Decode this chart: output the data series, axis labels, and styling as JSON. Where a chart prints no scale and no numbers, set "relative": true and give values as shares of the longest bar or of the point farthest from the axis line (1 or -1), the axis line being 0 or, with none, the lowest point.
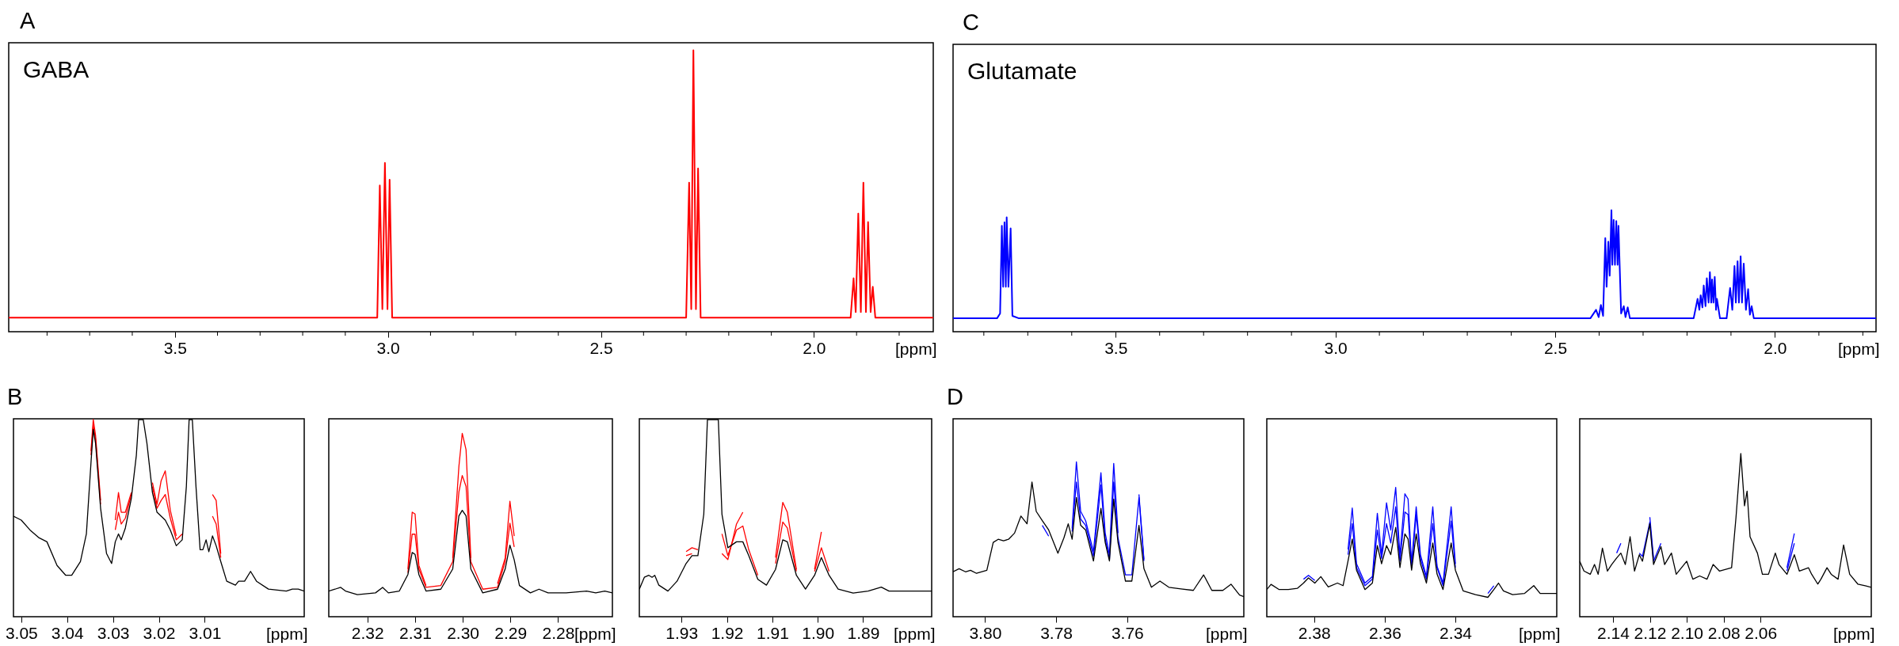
{
  "chart_data": [
    {
      "type": "line",
      "title": "A",
      "annotations": [
        "GABA"
      ],
      "xlabel": "[ppm]",
      "relative": true,
      "xlim": [
        3.89,
        1.72
      ],
      "xticks": [
        {
          "value": 3.8,
          "label": null
        },
        {
          "value": 3.7,
          "label": null
        },
        {
          "value": 3.6,
          "label": null
        },
        3.5,
        {
          "value": 3.4,
          "label": null
        },
        {
          "value": 3.3,
          "label": null
        },
        {
          "value": 3.2,
          "label": null
        },
        {
          "value": 3.1,
          "label": null
        },
        {
          "value": 3.0,
          "label": "3.0"
        },
        {
          "value": 2.9,
          "label": null
        },
        {
          "value": 2.8,
          "label": null
        },
        {
          "value": 2.7,
          "label": null
        },
        {
          "value": 2.6,
          "label": null
        },
        2.5,
        {
          "value": 2.4,
          "label": null
        },
        {
          "value": 2.3,
          "label": null
        },
        {
          "value": 2.2,
          "label": null
        },
        {
          "value": 2.1,
          "label": null
        },
        {
          "value": 2.0,
          "label": "2.0"
        },
        {
          "value": 1.9,
          "label": null
        },
        {
          "value": 1.8,
          "label": null
        }
      ],
      "x": [
        3.89,
        3.2,
        3.025,
        3.019,
        3.013,
        3.007,
        3.001,
        2.996,
        2.99,
        2.3,
        2.293,
        2.288,
        2.283,
        2.277,
        2.272,
        2.266,
        1.914,
        1.907,
        1.902,
        1.896,
        1.89,
        1.884,
        1.878,
        1.873,
        1.867,
        1.862,
        1.856,
        1.72
      ],
      "series": [
        {
          "color": "#ff0000",
          "values": [
            0.05,
            0.05,
            0.05,
            0.52,
            0.08,
            0.6,
            0.08,
            0.54,
            0.05,
            0.05,
            0.53,
            0.08,
            1.0,
            0.08,
            0.58,
            0.05,
            0.05,
            0.19,
            0.07,
            0.42,
            0.07,
            0.53,
            0.07,
            0.39,
            0.07,
            0.16,
            0.05,
            0.05
          ]
        }
      ]
    },
    {
      "type": "line",
      "title": "C",
      "annotations": [
        "Glutamate"
      ],
      "xlabel": "[ppm]",
      "relative": true,
      "xlim": [
        3.87,
        1.77
      ],
      "xticks": [
        {
          "value": 3.8,
          "label": null
        },
        {
          "value": 3.7,
          "label": null
        },
        {
          "value": 3.6,
          "label": null
        },
        3.5,
        {
          "value": 3.4,
          "label": null
        },
        {
          "value": 3.3,
          "label": null
        },
        {
          "value": 3.2,
          "label": null
        },
        {
          "value": 3.1,
          "label": null
        },
        {
          "value": 3.0,
          "label": "3.0"
        },
        {
          "value": 2.9,
          "label": null
        },
        {
          "value": 2.8,
          "label": null
        },
        {
          "value": 2.7,
          "label": null
        },
        {
          "value": 2.6,
          "label": null
        },
        2.5,
        {
          "value": 2.4,
          "label": null
        },
        {
          "value": 2.3,
          "label": null
        },
        {
          "value": 2.2,
          "label": null
        },
        {
          "value": 2.1,
          "label": null
        },
        {
          "value": 2.0,
          "label": "2.0"
        },
        {
          "value": 1.9,
          "label": null
        },
        {
          "value": 1.8,
          "label": null
        }
      ],
      "x": [
        3.87,
        3.77,
        3.763,
        3.759,
        3.756,
        3.753,
        3.75,
        3.748,
        3.744,
        3.739,
        3.735,
        3.72,
        2.42,
        2.407,
        2.401,
        2.396,
        2.391,
        2.386,
        2.383,
        2.379,
        2.376,
        2.372,
        2.37,
        2.367,
        2.364,
        2.361,
        2.358,
        2.356,
        2.35,
        2.344,
        2.34,
        2.335,
        2.33,
        2.185,
        2.176,
        2.172,
        2.169,
        2.165,
        2.162,
        2.158,
        2.155,
        2.151,
        2.148,
        2.145,
        2.143,
        2.14,
        2.137,
        2.134,
        2.132,
        2.125,
        2.11,
        2.102,
        2.097,
        2.092,
        2.089,
        2.085,
        2.082,
        2.078,
        2.075,
        2.071,
        2.066,
        2.061,
        2.057,
        2.053,
        2.048,
        1.77
      ],
      "series": [
        {
          "color": "#0000ff",
          "values": [
            0.11,
            0.11,
            0.15,
            0.87,
            0.37,
            0.9,
            0.37,
            0.94,
            0.37,
            0.85,
            0.13,
            0.11,
            0.11,
            0.18,
            0.12,
            0.22,
            0.13,
            0.77,
            0.37,
            0.74,
            0.46,
            1.0,
            0.55,
            0.92,
            0.55,
            0.91,
            0.55,
            0.87,
            0.15,
            0.21,
            0.12,
            0.2,
            0.11,
            0.11,
            0.27,
            0.18,
            0.3,
            0.2,
            0.38,
            0.21,
            0.44,
            0.24,
            0.49,
            0.24,
            0.43,
            0.24,
            0.45,
            0.18,
            0.27,
            0.11,
            0.11,
            0.36,
            0.18,
            0.54,
            0.24,
            0.58,
            0.24,
            0.62,
            0.24,
            0.56,
            0.18,
            0.35,
            0.14,
            0.21,
            0.11,
            0.11
          ]
        }
      ]
    },
    {
      "type": "line",
      "title": "B",
      "xlabel": "[ppm]",
      "relative": true,
      "xlim": [
        3.0517,
        2.9883
      ],
      "xticks": [
        3.05,
        3.04,
        3.03,
        3.02,
        3.01
      ],
      "x": [
        3.0517,
        3.05,
        3.0481,
        3.0461,
        3.0444,
        3.0422,
        3.0403,
        3.039,
        3.0371,
        3.0358,
        3.0348,
        3.0343,
        3.0338,
        3.0327,
        3.0314,
        3.0303,
        3.0295,
        3.0288,
        3.0282,
        3.0273,
        3.026,
        3.0249,
        3.0244,
        3.0234,
        3.0226,
        3.0214,
        3.0204,
        3.0195,
        3.0186,
        3.0175,
        3.0162,
        3.0149,
        3.014,
        3.0134,
        3.0127,
        3.0119,
        3.011,
        3.0104,
        3.0097,
        3.0091,
        3.0083,
        3.0075,
        3.0065,
        3.0052,
        3.0033,
        3.0026,
        3.0013,
        3.0,
        2.9987,
        2.9961,
        2.9922,
        2.9909,
        2.9896,
        2.9883
      ],
      "series": [
        {
          "color": "#ff0000",
          "values": [
            null,
            null,
            null,
            null,
            null,
            null,
            null,
            null,
            null,
            null,
            0.84,
            1.0,
            0.92,
            0.59,
            null,
            null,
            0.49,
            0.63,
            0.53,
            0.53,
            0.63,
            null,
            null,
            null,
            null,
            0.68,
            0.57,
            0.69,
            0.74,
            0.54,
            0.41,
            null,
            null,
            null,
            null,
            null,
            null,
            null,
            null,
            null,
            0.62,
            0.59,
            0.32,
            null,
            null,
            null,
            null,
            null,
            null,
            null,
            null,
            null,
            null,
            null
          ]
        },
        {
          "color": "#ff0000",
          "values": [
            null,
            null,
            null,
            null,
            null,
            null,
            null,
            null,
            null,
            null,
            0.82,
            0.97,
            0.9,
            0.57,
            null,
            null,
            0.44,
            0.53,
            0.47,
            0.5,
            0.62,
            null,
            null,
            null,
            null,
            0.66,
            0.55,
            0.59,
            0.62,
            0.5,
            0.39,
            0.42,
            null,
            null,
            null,
            null,
            null,
            null,
            null,
            null,
            0.51,
            0.47,
            0.3,
            null,
            null,
            null,
            null,
            null,
            null,
            null,
            null,
            null,
            null,
            null
          ]
        },
        {
          "color": "#000000",
          "values": [
            0.51,
            0.49,
            0.44,
            0.4,
            0.38,
            0.26,
            0.21,
            0.21,
            0.28,
            0.42,
            0.78,
            0.95,
            0.88,
            0.55,
            0.32,
            0.27,
            0.38,
            0.42,
            0.39,
            0.45,
            0.6,
            0.82,
            1.0,
            1.0,
            0.88,
            0.63,
            0.53,
            0.51,
            0.49,
            0.44,
            0.36,
            0.39,
            0.66,
            1.0,
            1.0,
            0.66,
            0.34,
            0.34,
            0.39,
            0.33,
            0.41,
            0.36,
            0.28,
            0.18,
            0.16,
            0.18,
            0.18,
            0.23,
            0.18,
            0.14,
            0.13,
            0.14,
            0.14,
            0.13
          ]
        }
      ]
    },
    {
      "type": "line",
      "xlabel": "[ppm]",
      "relative": true,
      "xlim": [
        2.3281,
        2.2686
      ],
      "xticks": [
        2.32,
        2.31,
        {
          "value": 2.3,
          "label": "2.30"
        },
        2.29,
        2.28
      ],
      "x": [
        2.3281,
        2.3268,
        2.3256,
        2.3246,
        2.3221,
        2.3183,
        2.3168,
        2.3156,
        2.3133,
        2.3115,
        2.3106,
        2.31,
        2.3092,
        2.3077,
        2.3046,
        2.3021,
        2.3008,
        2.3001,
        2.2993,
        2.2983,
        2.2958,
        2.2927,
        2.2911,
        2.2901,
        2.2892,
        2.2881,
        2.2858,
        2.284,
        2.2821,
        2.2783,
        2.274,
        2.2721,
        2.2702,
        2.2686
      ],
      "series": [
        {
          "color": "#ff0000",
          "values": [
            null,
            null,
            null,
            null,
            null,
            null,
            null,
            null,
            null,
            0.26,
            0.57,
            0.56,
            0.28,
            0.17,
            null,
            0.32,
            0.82,
            1.0,
            0.91,
            0.32,
            null,
            0.18,
            0.32,
            0.63,
            0.44,
            null,
            null,
            null,
            null,
            null,
            null,
            null,
            null,
            null
          ]
        },
        {
          "color": "#ff0000",
          "values": [
            null,
            null,
            null,
            null,
            null,
            null,
            null,
            null,
            null,
            0.24,
            0.45,
            0.45,
            0.26,
            0.16,
            0.17,
            0.3,
            0.68,
            0.77,
            0.71,
            0.3,
            0.15,
            0.16,
            0.3,
            0.51,
            0.38,
            null,
            null,
            null,
            null,
            null,
            null,
            null,
            null,
            null
          ]
        },
        {
          "color": "#000000",
          "values": [
            0.14,
            0.15,
            0.16,
            0.14,
            0.12,
            0.13,
            0.16,
            0.13,
            0.14,
            0.23,
            0.35,
            0.34,
            0.23,
            0.14,
            0.15,
            0.26,
            0.55,
            0.58,
            0.55,
            0.26,
            0.13,
            0.15,
            0.26,
            0.39,
            0.31,
            0.17,
            0.13,
            0.15,
            0.13,
            0.13,
            0.14,
            0.13,
            0.14,
            0.13
          ]
        }
      ]
    },
    {
      "type": "line",
      "xlabel": "[ppm]",
      "relative": true,
      "xlim": [
        1.9393,
        1.8749
      ],
      "xticks": [
        1.93,
        1.92,
        1.91,
        {
          "value": 1.9,
          "label": "1.90"
        },
        1.89
      ],
      "x": [
        1.9393,
        1.9382,
        1.9372,
        1.9365,
        1.9359,
        1.935,
        1.933,
        1.931,
        1.929,
        1.9277,
        1.9264,
        1.9251,
        1.9243,
        1.9219,
        1.9211,
        1.9198,
        1.9179,
        1.9165,
        1.9152,
        1.9132,
        1.9113,
        1.9093,
        1.9077,
        1.9067,
        1.9047,
        1.9027,
        1.9007,
        1.8992,
        1.8975,
        1.8955,
        1.8922,
        1.8889,
        1.886,
        1.8843,
        1.8804,
        1.8771,
        1.8749
      ],
      "series": [
        {
          "color": "#ff0000",
          "values": [
            null,
            null,
            null,
            null,
            null,
            null,
            null,
            null,
            0.33,
            0.35,
            0.34,
            null,
            null,
            null,
            0.32,
            0.29,
            0.47,
            0.53,
            null,
            null,
            null,
            0.3,
            0.58,
            0.53,
            0.24,
            null,
            0.24,
            0.43,
            null,
            null,
            null,
            null,
            null,
            null,
            null,
            null,
            null
          ]
        },
        {
          "color": "#ff0000",
          "values": [
            null,
            null,
            null,
            null,
            null,
            null,
            null,
            null,
            0.31,
            0.32,
            null,
            null,
            null,
            null,
            0.42,
            0.31,
            0.44,
            0.46,
            0.34,
            0.21,
            null,
            0.27,
            0.48,
            0.45,
            0.23,
            null,
            0.23,
            0.35,
            0.23,
            null,
            null,
            null,
            null,
            null,
            null,
            null,
            null
          ]
        },
        {
          "color": "#000000",
          "values": [
            0.14,
            0.2,
            0.21,
            0.2,
            0.21,
            0.16,
            0.13,
            0.18,
            0.27,
            0.31,
            0.31,
            0.52,
            1.0,
            1.0,
            0.52,
            0.35,
            0.38,
            0.38,
            0.31,
            0.19,
            0.16,
            0.24,
            0.39,
            0.38,
            0.21,
            0.14,
            0.21,
            0.3,
            0.21,
            0.14,
            0.12,
            0.13,
            0.15,
            0.13,
            0.13,
            0.13,
            0.13
          ]
        }
      ]
    },
    {
      "type": "line",
      "title": "D",
      "xlabel": "[ppm]",
      "relative": true,
      "xlim": [
        3.809,
        3.7272
      ],
      "xticks": [
        {
          "value": 3.8,
          "label": "3.80"
        },
        3.78,
        3.76
      ],
      "x": [
        3.809,
        3.8073,
        3.8055,
        3.8041,
        3.8024,
        3.7995,
        3.7977,
        3.7963,
        3.7948,
        3.7934,
        3.7917,
        3.7899,
        3.7882,
        3.7868,
        3.7856,
        3.7839,
        3.7821,
        3.7795,
        3.7778,
        3.7766,
        3.7755,
        3.7743,
        3.7731,
        3.7717,
        3.7695,
        3.7674,
        3.7662,
        3.765,
        3.7638,
        3.7626,
        3.7605,
        3.7587,
        3.7567,
        3.7553,
        3.7532,
        3.7508,
        3.7483,
        3.7449,
        3.7414,
        3.7385,
        3.7362,
        3.7331,
        3.7308,
        3.7284,
        3.7272
      ],
      "series": [
        {
          "color": "#0000ff",
          "values": [
            null,
            null,
            null,
            null,
            null,
            null,
            null,
            null,
            null,
            null,
            null,
            null,
            null,
            null,
            null,
            null,
            null,
            null,
            null,
            null,
            0.57,
            1.0,
            0.68,
            0.62,
            0.42,
            0.93,
            0.54,
            0.4,
            0.99,
            0.54,
            null,
            null,
            0.79,
            0.37,
            null,
            null,
            null,
            null,
            null,
            null,
            null,
            null,
            null,
            null,
            null
          ]
        },
        {
          "color": "#0000ff",
          "values": [
            null,
            null,
            null,
            null,
            null,
            null,
            null,
            null,
            null,
            null,
            null,
            null,
            null,
            null,
            null,
            0.59,
            0.52,
            null,
            null,
            null,
            0.55,
            0.87,
            0.63,
            0.59,
            0.39,
            0.85,
            0.5,
            0.37,
            0.87,
            0.51,
            0.27,
            0.27,
            0.77,
            0.36,
            null,
            null,
            null,
            null,
            null,
            null,
            null,
            null,
            null,
            null,
            null
          ]
        },
        {
          "color": "#000000",
          "values": [
            0.29,
            0.31,
            0.29,
            0.3,
            0.28,
            0.3,
            0.48,
            0.5,
            0.49,
            0.5,
            0.54,
            0.65,
            0.6,
            0.87,
            0.68,
            0.62,
            0.56,
            0.41,
            0.51,
            0.6,
            0.5,
            0.77,
            0.59,
            0.56,
            0.36,
            0.7,
            0.48,
            0.36,
            0.76,
            0.48,
            0.23,
            0.23,
            0.59,
            0.31,
            0.19,
            0.23,
            0.19,
            0.18,
            0.17,
            0.27,
            0.17,
            0.17,
            0.21,
            0.14,
            0.13
          ]
        }
      ]
    },
    {
      "type": "line",
      "xlabel": "[ppm]",
      "relative": true,
      "xlim": [
        2.3934,
        2.3113
      ],
      "xticks": [
        2.38,
        2.36,
        2.34
      ],
      "x": [
        2.3934,
        2.3922,
        2.3899,
        2.3873,
        2.3847,
        2.383,
        2.3816,
        2.3798,
        2.3781,
        2.376,
        2.3734,
        2.3718,
        2.3704,
        2.3692,
        2.368,
        2.3656,
        2.3635,
        2.3621,
        2.3609,
        2.3595,
        2.3583,
        2.3569,
        2.3557,
        2.3543,
        2.3534,
        2.3524,
        2.3511,
        2.3499,
        2.3482,
        2.3464,
        2.3452,
        2.3435,
        2.3412,
        2.34,
        2.3378,
        2.3343,
        2.3308,
        2.3291,
        2.3278,
        2.3264,
        2.3238,
        2.3204,
        2.3178,
        2.316,
        2.3134,
        2.3113
      ],
      "series": [
        {
          "color": "#0000ff",
          "values": [
            null,
            null,
            null,
            null,
            null,
            null,
            null,
            null,
            null,
            null,
            null,
            null,
            0.52,
            0.84,
            0.41,
            0.26,
            0.31,
            0.8,
            0.48,
            0.88,
            0.67,
            1.0,
            0.47,
            0.95,
            0.91,
            0.41,
            0.85,
            0.48,
            0.31,
            0.85,
            0.39,
            0.26,
            0.85,
            0.41,
            null,
            null,
            0.18,
            0.24,
            null,
            null,
            null,
            null,
            null,
            null,
            null,
            null
          ]
        },
        {
          "color": "#0000ff",
          "values": [
            null,
            null,
            null,
            null,
            null,
            0.29,
            0.32,
            0.28,
            null,
            null,
            null,
            null,
            0.48,
            0.72,
            0.38,
            0.24,
            0.29,
            0.67,
            0.45,
            0.72,
            0.57,
            0.85,
            0.43,
            0.81,
            0.79,
            0.38,
            0.79,
            0.45,
            0.29,
            0.72,
            0.38,
            0.24,
            0.74,
            0.38,
            null,
            null,
            null,
            null,
            null,
            null,
            null,
            null,
            null,
            null,
            null,
            null
          ]
        },
        {
          "color": "#000000",
          "values": [
            0.21,
            0.25,
            0.21,
            0.21,
            0.22,
            0.26,
            0.3,
            0.26,
            0.31,
            0.23,
            0.26,
            0.24,
            0.43,
            0.6,
            0.36,
            0.21,
            0.26,
            0.55,
            0.41,
            0.55,
            0.48,
            0.69,
            0.38,
            0.64,
            0.6,
            0.36,
            0.64,
            0.41,
            0.26,
            0.57,
            0.33,
            0.21,
            0.57,
            0.36,
            0.2,
            0.17,
            0.15,
            0.21,
            0.26,
            0.2,
            0.17,
            0.18,
            0.24,
            0.18,
            0.18,
            0.18
          ]
        }
      ]
    },
    {
      "type": "line",
      "xlabel": "[ppm]",
      "relative": true,
      "xlim": [
        2.158,
        2.0
      ],
      "xticks": [
        2.14,
        2.12,
        {
          "value": 2.1,
          "label": "2.10"
        },
        2.08,
        2.06
      ],
      "x": [
        2.158,
        2.1557,
        2.1523,
        2.15,
        2.148,
        2.1457,
        2.143,
        2.1407,
        2.138,
        2.1357,
        2.1333,
        2.1307,
        2.1283,
        2.1257,
        2.124,
        2.12,
        2.118,
        2.114,
        2.112,
        2.1083,
        2.1057,
        2.1,
        2.0967,
        2.093,
        2.089,
        2.0857,
        2.0823,
        2.0757,
        2.0733,
        2.0707,
        2.0687,
        2.0673,
        2.0657,
        2.0617,
        2.059,
        2.0557,
        2.052,
        2.05,
        2.0457,
        2.0417,
        2.039,
        2.034,
        2.0323,
        2.029,
        2.0273,
        2.024,
        2.0217,
        2.018,
        2.015,
        2.0117,
        2.0073,
        2.0033,
        2.0
      ],
      "series": [
        {
          "color": "#0000ff",
          "values": [
            null,
            null,
            null,
            null,
            null,
            null,
            null,
            null,
            0.39,
            0.45,
            null,
            null,
            null,
            null,
            null,
            0.61,
            0.36,
            null,
            null,
            null,
            null,
            null,
            null,
            null,
            null,
            null,
            null,
            null,
            null,
            null,
            null,
            null,
            null,
            null,
            null,
            null,
            null,
            null,
            0.3,
            0.51,
            null,
            null,
            null,
            null,
            null,
            null,
            null,
            null,
            null,
            null,
            null,
            null,
            null
          ]
        },
        {
          "color": "#0000ff",
          "values": [
            null,
            null,
            null,
            null,
            null,
            null,
            null,
            null,
            null,
            null,
            null,
            null,
            null,
            0.39,
            0.37,
            0.58,
            0.34,
            0.45,
            null,
            null,
            null,
            null,
            null,
            null,
            null,
            null,
            null,
            null,
            null,
            null,
            null,
            null,
            null,
            null,
            null,
            null,
            null,
            null,
            0.28,
            0.45,
            null,
            null,
            null,
            null,
            null,
            null,
            null,
            null,
            null,
            null,
            null,
            null,
            null
          ]
        },
        {
          "color": "#000000",
          "values": [
            0.34,
            0.28,
            0.26,
            0.32,
            0.26,
            0.42,
            0.28,
            0.32,
            0.36,
            0.39,
            0.32,
            0.49,
            0.28,
            0.38,
            0.34,
            0.57,
            0.32,
            0.43,
            0.32,
            0.39,
            0.26,
            0.34,
            0.23,
            0.25,
            0.23,
            0.32,
            0.28,
            0.3,
            0.61,
            1.0,
            0.68,
            0.77,
            0.49,
            0.39,
            0.26,
            0.26,
            0.39,
            0.32,
            0.26,
            0.38,
            0.28,
            0.3,
            0.26,
            0.2,
            0.23,
            0.3,
            0.26,
            0.23,
            0.44,
            0.26,
            0.2,
            0.19,
            0.18
          ]
        }
      ]
    }
  ]
}
